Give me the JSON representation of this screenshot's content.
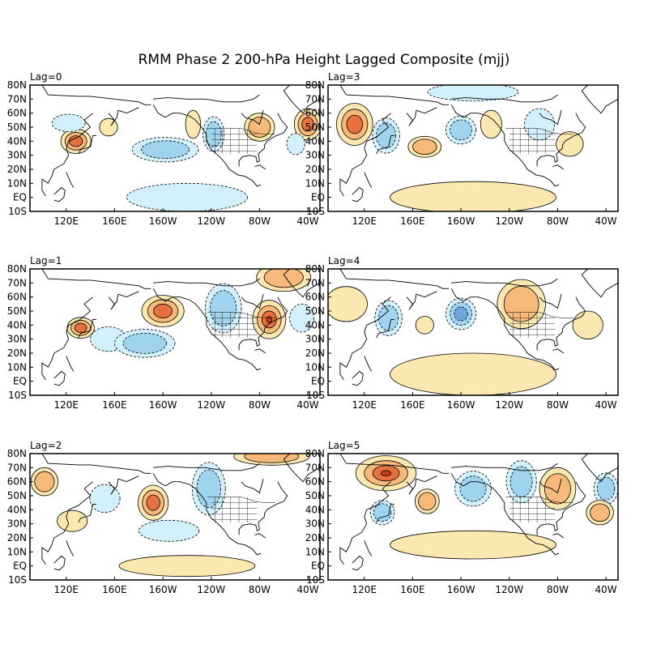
{
  "title": "RMM Phase 2 200-hPa Height Lagged Composite (mjj)",
  "lat_labels": [
    "80N",
    "70N",
    "60N",
    "50N",
    "40N",
    "30N",
    "20N",
    "10N",
    "EQ",
    "10S"
  ],
  "lon_labels": [
    "120E",
    "160E",
    "160W",
    "120W",
    "80W",
    "40W"
  ],
  "colors": {
    "neg_light": "#d2f0fb",
    "neg_mid": "#9fd3ee",
    "neg_dark": "#6aa8dc",
    "pos_light": "#fbe8b0",
    "pos_mid": "#f6b97a",
    "pos_dark": "#e6713e",
    "pos_strong": "#c83c1e"
  },
  "panels": [
    {
      "label": "Lag=0",
      "features": [
        {
          "s": "pos",
          "lon": 128,
          "lat": 40,
          "rx": 10,
          "ry": 7,
          "amp": 3
        },
        {
          "s": "neg",
          "lon": 122,
          "lat": 53,
          "rx": 11,
          "ry": 5,
          "amp": 1
        },
        {
          "s": "pos",
          "lon": 155,
          "lat": 50,
          "rx": 6,
          "ry": 5,
          "amp": 1
        },
        {
          "s": "neg",
          "lon": -158,
          "lat": 34,
          "rx": 22,
          "ry": 7,
          "amp": 2
        },
        {
          "s": "neg",
          "lon": -118,
          "lat": 45,
          "rx": 7,
          "ry": 10,
          "amp": 2
        },
        {
          "s": "pos",
          "lon": -135,
          "lat": 52,
          "rx": 5,
          "ry": 8,
          "amp": 1
        },
        {
          "s": "pos",
          "lon": -80,
          "lat": 50,
          "rx": 10,
          "ry": 8,
          "amp": 2
        },
        {
          "s": "pos",
          "lon": -40,
          "lat": 52,
          "rx": 9,
          "ry": 9,
          "amp": 3
        },
        {
          "s": "neg",
          "lon": -50,
          "lat": 38,
          "rx": 6,
          "ry": 6,
          "amp": 1
        },
        {
          "s": "neg",
          "lon": -140,
          "lat": 0,
          "rx": 40,
          "ry": 8,
          "amp": 1
        }
      ]
    },
    {
      "label": "Lag=3",
      "features": [
        {
          "s": "pos",
          "lon": 112,
          "lat": 52,
          "rx": 12,
          "ry": 12,
          "amp": 3
        },
        {
          "s": "neg",
          "lon": 138,
          "lat": 44,
          "rx": 9,
          "ry": 10,
          "amp": 2
        },
        {
          "s": "pos",
          "lon": 170,
          "lat": 36,
          "rx": 11,
          "ry": 6,
          "amp": 2
        },
        {
          "s": "neg",
          "lon": -160,
          "lat": 48,
          "rx": 10,
          "ry": 8,
          "amp": 2
        },
        {
          "s": "pos",
          "lon": -135,
          "lat": 52,
          "rx": 7,
          "ry": 8,
          "amp": 1
        },
        {
          "s": "neg",
          "lon": -95,
          "lat": 52,
          "rx": 10,
          "ry": 9,
          "amp": 1
        },
        {
          "s": "pos",
          "lon": -70,
          "lat": 38,
          "rx": 9,
          "ry": 7,
          "amp": 1
        },
        {
          "s": "pos",
          "lon": -150,
          "lat": 0,
          "rx": 55,
          "ry": 9,
          "amp": 1
        },
        {
          "s": "neg",
          "lon": -150,
          "lat": 75,
          "rx": 30,
          "ry": 5,
          "amp": 1
        }
      ]
    },
    {
      "label": "Lag=1",
      "features": [
        {
          "s": "pos",
          "lon": 132,
          "lat": 38,
          "rx": 9,
          "ry": 6,
          "amp": 3
        },
        {
          "s": "neg",
          "lon": 155,
          "lat": 30,
          "rx": 12,
          "ry": 7,
          "amp": 1
        },
        {
          "s": "neg",
          "lon": -175,
          "lat": 27,
          "rx": 20,
          "ry": 8,
          "amp": 2
        },
        {
          "s": "pos",
          "lon": -160,
          "lat": 50,
          "rx": 14,
          "ry": 9,
          "amp": 3
        },
        {
          "s": "neg",
          "lon": -110,
          "lat": 52,
          "rx": 12,
          "ry": 14,
          "amp": 2
        },
        {
          "s": "pos",
          "lon": -72,
          "lat": 44,
          "rx": 11,
          "ry": 11,
          "amp": 4
        },
        {
          "s": "pos",
          "lon": -60,
          "lat": 74,
          "rx": 18,
          "ry": 8,
          "amp": 2
        },
        {
          "s": "neg",
          "lon": -45,
          "lat": 45,
          "rx": 8,
          "ry": 8,
          "amp": 1
        }
      ]
    },
    {
      "label": "Lag=4",
      "features": [
        {
          "s": "pos",
          "lon": 105,
          "lat": 55,
          "rx": 14,
          "ry": 10,
          "amp": 1
        },
        {
          "s": "neg",
          "lon": 140,
          "lat": 45,
          "rx": 9,
          "ry": 10,
          "amp": 2
        },
        {
          "s": "pos",
          "lon": 170,
          "lat": 40,
          "rx": 6,
          "ry": 5,
          "amp": 1
        },
        {
          "s": "neg",
          "lon": -160,
          "lat": 48,
          "rx": 10,
          "ry": 9,
          "amp": 3
        },
        {
          "s": "pos",
          "lon": -110,
          "lat": 55,
          "rx": 16,
          "ry": 14,
          "amp": 2
        },
        {
          "s": "pos",
          "lon": -55,
          "lat": 40,
          "rx": 10,
          "ry": 8,
          "amp": 1
        },
        {
          "s": "pos",
          "lon": -150,
          "lat": 5,
          "rx": 55,
          "ry": 12,
          "amp": 1
        }
      ]
    },
    {
      "label": "Lag=2",
      "features": [
        {
          "s": "pos",
          "lon": 102,
          "lat": 60,
          "rx": 9,
          "ry": 8,
          "amp": 2
        },
        {
          "s": "pos",
          "lon": 125,
          "lat": 32,
          "rx": 10,
          "ry": 6,
          "amp": 1
        },
        {
          "s": "neg",
          "lon": 152,
          "lat": 48,
          "rx": 10,
          "ry": 8,
          "amp": 1
        },
        {
          "s": "pos",
          "lon": -168,
          "lat": 45,
          "rx": 10,
          "ry": 10,
          "amp": 3
        },
        {
          "s": "neg",
          "lon": -122,
          "lat": 55,
          "rx": 11,
          "ry": 15,
          "amp": 2
        },
        {
          "s": "neg",
          "lon": -155,
          "lat": 25,
          "rx": 20,
          "ry": 6,
          "amp": 1
        },
        {
          "s": "pos",
          "lon": -70,
          "lat": 78,
          "rx": 25,
          "ry": 5,
          "amp": 2
        },
        {
          "s": "pos",
          "lon": -140,
          "lat": 0,
          "rx": 45,
          "ry": 6,
          "amp": 1
        }
      ]
    },
    {
      "label": "Lag=5",
      "features": [
        {
          "s": "pos",
          "lon": 138,
          "lat": 66,
          "rx": 20,
          "ry": 10,
          "amp": 4
        },
        {
          "s": "neg",
          "lon": 135,
          "lat": 38,
          "rx": 8,
          "ry": 7,
          "amp": 2
        },
        {
          "s": "pos",
          "lon": 172,
          "lat": 46,
          "rx": 8,
          "ry": 7,
          "amp": 2
        },
        {
          "s": "neg",
          "lon": -150,
          "lat": 55,
          "rx": 12,
          "ry": 10,
          "amp": 2
        },
        {
          "s": "neg",
          "lon": -110,
          "lat": 60,
          "rx": 10,
          "ry": 12,
          "amp": 2
        },
        {
          "s": "pos",
          "lon": -80,
          "lat": 55,
          "rx": 12,
          "ry": 12,
          "amp": 2
        },
        {
          "s": "neg",
          "lon": -40,
          "lat": 55,
          "rx": 8,
          "ry": 9,
          "amp": 2
        },
        {
          "s": "pos",
          "lon": -45,
          "lat": 38,
          "rx": 9,
          "ry": 7,
          "amp": 2
        },
        {
          "s": "pos",
          "lon": -150,
          "lat": 15,
          "rx": 55,
          "ry": 8,
          "amp": 1
        }
      ]
    }
  ]
}
